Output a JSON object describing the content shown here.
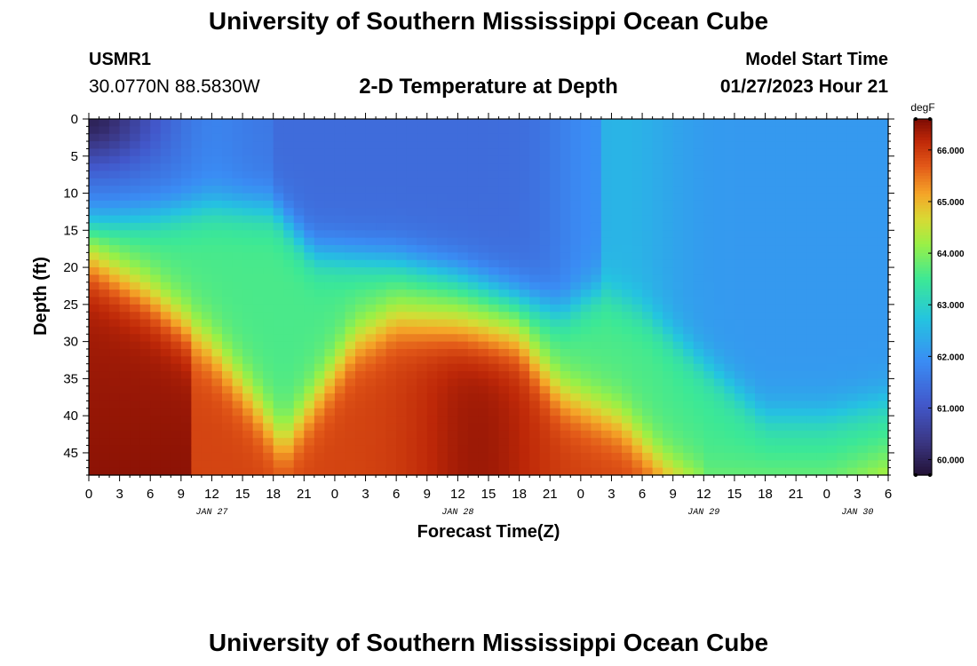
{
  "header": {
    "title": "University of Southern Mississippi Ocean Cube",
    "station_id": "USMR1",
    "coordinates": "30.0770N  88.5830W",
    "subtitle": "2-D Temperature at Depth",
    "start_label": "Model Start Time",
    "start_value": "01/27/2023 Hour 21"
  },
  "footer": {
    "title": "University of Southern Mississippi Ocean Cube"
  },
  "chart_data": {
    "type": "heatmap",
    "title": "2-D Temperature at Depth",
    "xlabel": "Forecast Time(Z)",
    "ylabel": "Depth (ft)",
    "x_ticks": [
      "0",
      "3",
      "6",
      "9",
      "12",
      "15",
      "18",
      "21",
      "0",
      "3",
      "6",
      "9",
      "12",
      "15",
      "18",
      "21",
      "0",
      "3",
      "6",
      "9",
      "12",
      "15",
      "18",
      "21",
      "0",
      "3",
      "6"
    ],
    "x_range_hours": [
      0,
      78
    ],
    "date_labels": [
      {
        "label": "JAN 27",
        "hour": 12
      },
      {
        "label": "JAN 28",
        "hour": 36
      },
      {
        "label": "JAN 29",
        "hour": 60
      },
      {
        "label": "JAN 30",
        "hour": 75
      }
    ],
    "y_ticks": [
      0,
      5,
      10,
      15,
      20,
      25,
      30,
      35,
      40,
      45
    ],
    "y_range_ft": [
      0,
      48
    ],
    "colorbar": {
      "unit": "degF",
      "min": 59.7,
      "max": 66.6,
      "ticks": [
        "60.000",
        "61.000",
        "62.000",
        "63.000",
        "64.000",
        "65.000",
        "66.000"
      ],
      "tick_values": [
        60,
        61,
        62,
        63,
        64,
        65,
        66
      ]
    },
    "thermocline_depth_ft_by_hour": [
      [
        0,
        14
      ],
      [
        6,
        13
      ],
      [
        12,
        11.5
      ],
      [
        18,
        12
      ],
      [
        22,
        18
      ],
      [
        30,
        19
      ],
      [
        36,
        21
      ],
      [
        42,
        24
      ],
      [
        46,
        26
      ],
      [
        50,
        23
      ],
      [
        54,
        26
      ],
      [
        60,
        33
      ],
      [
        66,
        40
      ],
      [
        72,
        40
      ],
      [
        78,
        38
      ]
    ],
    "warm_surface_depth_ft_by_hour": [
      [
        0,
        19
      ],
      [
        6,
        24
      ],
      [
        12,
        31
      ],
      [
        16,
        38
      ],
      [
        19,
        44
      ],
      [
        22,
        38
      ],
      [
        26,
        30
      ],
      [
        30,
        27
      ],
      [
        36,
        28
      ],
      [
        42,
        30
      ],
      [
        46,
        37
      ],
      [
        52,
        41
      ],
      [
        56,
        47
      ],
      [
        60,
        51
      ],
      [
        72,
        51
      ],
      [
        78,
        47
      ]
    ],
    "max_temp_degF": 66.6,
    "min_temp_degF": 59.7
  }
}
